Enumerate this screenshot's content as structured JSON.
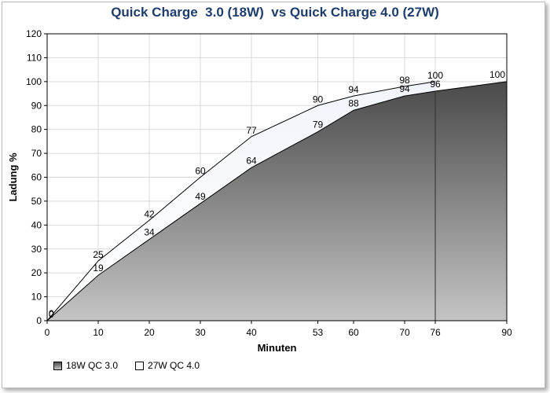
{
  "chart_data": {
    "type": "area",
    "title": "Quick Charge  3.0 (18W)  vs Quick Charge 4.0 (27W)",
    "xlabel": "Minuten",
    "ylabel": "Ladung %",
    "xlim": [
      0,
      90
    ],
    "ylim": [
      0,
      120
    ],
    "xticks": [
      0,
      10,
      20,
      30,
      40,
      53,
      60,
      70,
      76,
      90
    ],
    "yticks": [
      0,
      10,
      20,
      30,
      40,
      50,
      60,
      70,
      80,
      90,
      100,
      110,
      120
    ],
    "grid": true,
    "legend_position": "bottom-left",
    "series": [
      {
        "name": "18W QC 3.0",
        "x": [
          0,
          10,
          20,
          30,
          40,
          53,
          60,
          70,
          76,
          90
        ],
        "values": [
          0,
          19,
          34,
          49,
          64,
          79,
          88,
          94,
          96,
          100
        ],
        "color_top": "#4a4a4a",
        "color_bottom": "#c4c4c4"
      },
      {
        "name": "27W QC 4.0",
        "x": [
          0,
          10,
          20,
          30,
          40,
          53,
          60,
          70,
          76
        ],
        "values": [
          0,
          25,
          42,
          60,
          77,
          90,
          94,
          98,
          100
        ],
        "color_top": "#f2f4fb",
        "color_bottom": "#ffffff"
      }
    ]
  }
}
